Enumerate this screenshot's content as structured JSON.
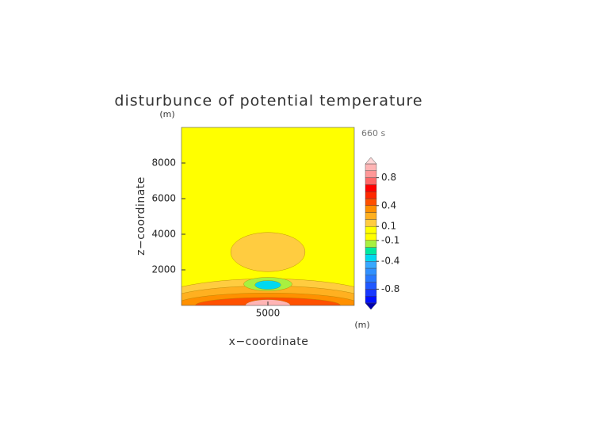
{
  "chart_data": {
    "type": "contour",
    "title": "disturbunce of potential temperature",
    "time_label": "660 s",
    "x_label": "x−coordinate",
    "y_label": "z−coordinate",
    "x_unit": "(m)",
    "y_unit": "(m)",
    "xlim": [
      0,
      10000
    ],
    "xticks": [
      5000
    ],
    "ylim": [
      0,
      10000
    ],
    "yticks": [
      2000,
      4000,
      6000,
      8000
    ],
    "background_value": 0,
    "regions": [
      {
        "x": 5000,
        "z": 0,
        "rx": 7000,
        "rz": 1500,
        "value": 0.15
      },
      {
        "x": 5000,
        "z": 0,
        "rx": 6300,
        "rz": 1100,
        "value": 0.25
      },
      {
        "x": 5000,
        "z": 0,
        "rx": 5400,
        "rz": 700,
        "value": 0.35
      },
      {
        "x": 5000,
        "z": 0,
        "rx": 4200,
        "rz": 450,
        "value": 0.45
      },
      {
        "x": 5000,
        "z": 0,
        "rx": 1300,
        "rz": 330,
        "value": 0.95
      },
      {
        "x": 5000,
        "z": 1200,
        "rx": 1400,
        "rz": 380,
        "value": -0.15
      },
      {
        "x": 5000,
        "z": 1150,
        "rx": 750,
        "rz": 250,
        "value": -0.35
      },
      {
        "x": 5000,
        "z": 3000,
        "rx": 2150,
        "rz": 1100,
        "value": 0.15
      }
    ],
    "levels": [
      -1.0,
      -0.9,
      -0.8,
      -0.7,
      -0.6,
      -0.5,
      -0.4,
      -0.3,
      -0.2,
      -0.1,
      0,
      0.1,
      0.2,
      0.3,
      0.4,
      0.5,
      0.6,
      0.7,
      0.8,
      0.9,
      1.0
    ],
    "colors": [
      "#0010ff",
      "#1838ff",
      "#2058ff",
      "#2878ff",
      "#3090ff",
      "#38a8ff",
      "#00d8f0",
      "#00e8a0",
      "#a8f040",
      "#ffff00",
      "#ffff00",
      "#ffcc40",
      "#ffb020",
      "#ff9000",
      "#ff5000",
      "#ff2800",
      "#ff0000",
      "#ff6868",
      "#ff9898",
      "#ffb4b4"
    ],
    "under_color": "#0000b0",
    "over_color": "#ffd8d8",
    "colorbar_ticks": [
      0.8,
      0.4,
      0.1,
      -0.1,
      -0.4,
      -0.8
    ]
  }
}
